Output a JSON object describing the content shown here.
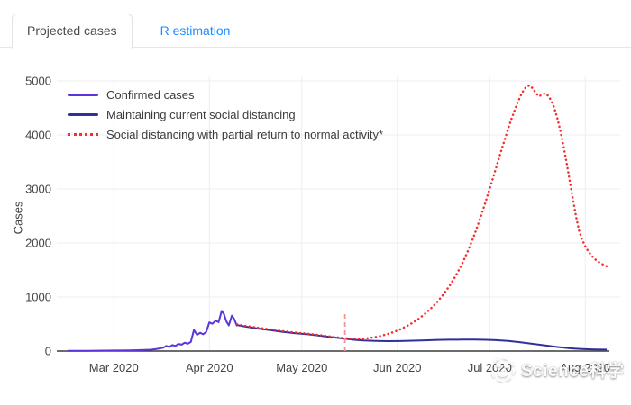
{
  "tabs": {
    "items": [
      {
        "label": "Projected cases",
        "active": true
      },
      {
        "label": "R estimation",
        "active": false
      }
    ],
    "active_text_color": "#4c4c4c",
    "link_color": "#1a8cff"
  },
  "watermark": {
    "text": "Science科学",
    "icon": "panda-logo"
  },
  "chart_data": {
    "type": "line",
    "title": "",
    "xlabel": "",
    "ylabel": "Cases",
    "ylim": [
      0,
      5000
    ],
    "grid": true,
    "legend_position": "top-left",
    "y_ticks": [
      {
        "label": "0",
        "value": 0
      },
      {
        "label": "1000",
        "value": 1000
      },
      {
        "label": "2000",
        "value": 2000
      },
      {
        "label": "3000",
        "value": 3000
      },
      {
        "label": "4000",
        "value": 4000
      },
      {
        "label": "5000",
        "value": 5000
      }
    ],
    "x_ticks": [
      {
        "label": "Mar 2020",
        "day": 15
      },
      {
        "label": "Apr 2020",
        "day": 46
      },
      {
        "label": "May 2020",
        "day": 76
      },
      {
        "label": "Jun 2020",
        "day": 107
      },
      {
        "label": "Jul 2020",
        "day": 137
      },
      {
        "label": "Aug 2020",
        "day": 168
      }
    ],
    "annotation": {
      "type": "vline-dashed",
      "day": 90,
      "y_from": 0,
      "y_to": 700,
      "color": "#f09595"
    },
    "series": [
      {
        "name": "Confirmed cases",
        "color": "#5a35d9",
        "style": "solid",
        "width": 2,
        "points": [
          [
            0,
            4
          ],
          [
            6,
            5
          ],
          [
            12,
            8
          ],
          [
            16,
            10
          ],
          [
            20,
            14
          ],
          [
            24,
            18
          ],
          [
            27,
            25
          ],
          [
            29,
            40
          ],
          [
            31,
            62
          ],
          [
            32,
            95
          ],
          [
            33,
            75
          ],
          [
            34,
            110
          ],
          [
            35,
            95
          ],
          [
            36,
            132
          ],
          [
            37,
            118
          ],
          [
            38,
            155
          ],
          [
            39,
            135
          ],
          [
            40,
            168
          ],
          [
            41,
            390
          ],
          [
            42,
            300
          ],
          [
            43,
            338
          ],
          [
            44,
            310
          ],
          [
            45,
            355
          ],
          [
            46,
            530
          ],
          [
            47,
            505
          ],
          [
            48,
            562
          ],
          [
            49,
            535
          ],
          [
            50,
            745
          ],
          [
            50.7,
            690
          ],
          [
            51.5,
            555
          ],
          [
            52.3,
            475
          ],
          [
            53.3,
            655
          ],
          [
            54,
            600
          ],
          [
            55,
            460
          ]
        ]
      },
      {
        "name": "Maintaining current social distancing",
        "color": "#2f2f9d",
        "style": "solid",
        "width": 2,
        "points": [
          [
            55,
            480
          ],
          [
            58,
            450
          ],
          [
            62,
            415
          ],
          [
            66,
            385
          ],
          [
            70,
            355
          ],
          [
            74,
            330
          ],
          [
            78,
            310
          ],
          [
            82,
            283
          ],
          [
            86,
            255
          ],
          [
            90,
            228
          ],
          [
            93,
            208
          ],
          [
            96,
            195
          ],
          [
            100,
            187
          ],
          [
            104,
            184
          ],
          [
            108,
            185
          ],
          [
            112,
            191
          ],
          [
            116,
            199
          ],
          [
            120,
            206
          ],
          [
            124,
            210
          ],
          [
            128,
            212
          ],
          [
            132,
            212
          ],
          [
            136,
            209
          ],
          [
            139,
            202
          ],
          [
            143,
            186
          ],
          [
            147,
            162
          ],
          [
            151,
            133
          ],
          [
            155,
            103
          ],
          [
            159,
            75
          ],
          [
            163,
            52
          ],
          [
            167,
            38
          ],
          [
            171,
            30
          ],
          [
            175,
            26
          ]
        ]
      },
      {
        "name": "Social distancing with partial return to normal activity*",
        "color": "#f62b2b",
        "style": "dotted",
        "width": 2.5,
        "points": [
          [
            55,
            495
          ],
          [
            58,
            464
          ],
          [
            62,
            430
          ],
          [
            66,
            398
          ],
          [
            70,
            368
          ],
          [
            74,
            342
          ],
          [
            78,
            320
          ],
          [
            82,
            293
          ],
          [
            86,
            264
          ],
          [
            88,
            250
          ],
          [
            90,
            238
          ],
          [
            92,
            228
          ],
          [
            94,
            225
          ],
          [
            96,
            230
          ],
          [
            98,
            242
          ],
          [
            100,
            260
          ],
          [
            102,
            285
          ],
          [
            104,
            317
          ],
          [
            106,
            356
          ],
          [
            108,
            403
          ],
          [
            110,
            459
          ],
          [
            112,
            524
          ],
          [
            114,
            600
          ],
          [
            116,
            690
          ],
          [
            118,
            793
          ],
          [
            120,
            912
          ],
          [
            122,
            1050
          ],
          [
            124,
            1210
          ],
          [
            126,
            1395
          ],
          [
            128,
            1610
          ],
          [
            130,
            1860
          ],
          [
            132,
            2150
          ],
          [
            134,
            2470
          ],
          [
            136,
            2820
          ],
          [
            138,
            3190
          ],
          [
            140,
            3570
          ],
          [
            142,
            3940
          ],
          [
            144,
            4290
          ],
          [
            146,
            4590
          ],
          [
            147,
            4720
          ],
          [
            148,
            4830
          ],
          [
            149,
            4900
          ],
          [
            150,
            4915
          ],
          [
            151,
            4860
          ],
          [
            152,
            4775
          ],
          [
            153,
            4715
          ],
          [
            154,
            4745
          ],
          [
            155,
            4770
          ],
          [
            156,
            4725
          ],
          [
            157,
            4635
          ],
          [
            158,
            4495
          ],
          [
            159,
            4295
          ],
          [
            160,
            4060
          ],
          [
            161,
            3780
          ],
          [
            162,
            3470
          ],
          [
            163,
            3140
          ],
          [
            164,
            2810
          ],
          [
            165,
            2490
          ],
          [
            166,
            2230
          ],
          [
            167,
            2060
          ],
          [
            168,
            1940
          ],
          [
            169,
            1845
          ],
          [
            170,
            1770
          ],
          [
            171,
            1708
          ],
          [
            172,
            1662
          ],
          [
            173,
            1625
          ],
          [
            174,
            1595
          ],
          [
            175,
            1568
          ]
        ]
      }
    ]
  }
}
